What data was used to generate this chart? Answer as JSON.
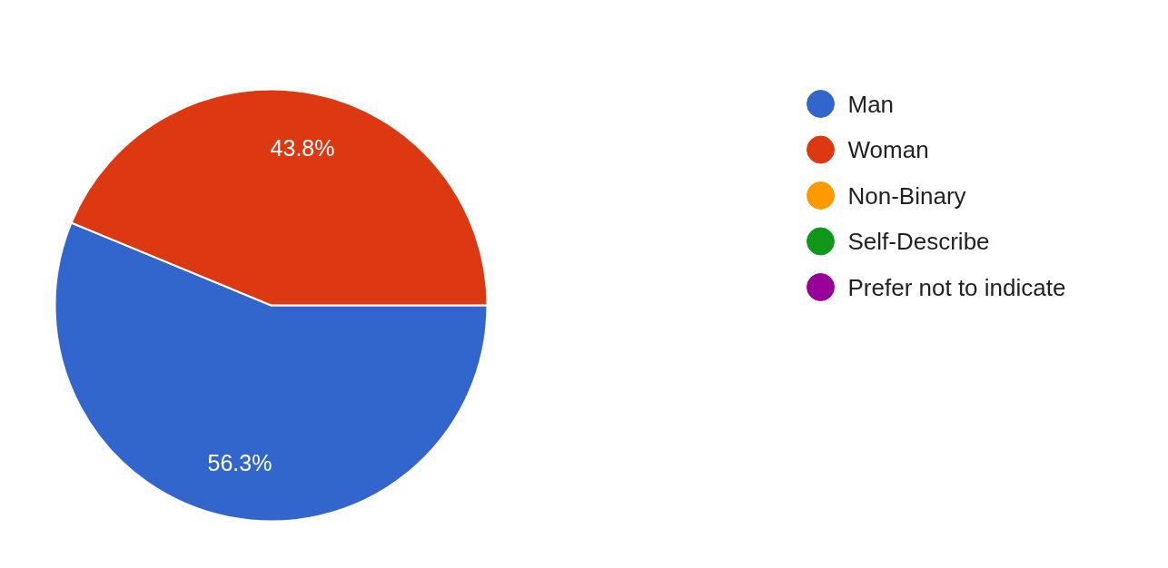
{
  "chart_data": {
    "type": "pie",
    "categories": [
      "Man",
      "Woman",
      "Non-Binary",
      "Self-Describe",
      "Prefer not to indicate"
    ],
    "values": [
      56.3,
      43.8,
      0,
      0,
      0
    ],
    "colors": [
      "#3366cc",
      "#dc3912",
      "#ff9900",
      "#109618",
      "#990099"
    ],
    "value_labels": [
      "56.3%",
      "43.8%",
      null,
      null,
      null
    ],
    "legend": "right"
  }
}
